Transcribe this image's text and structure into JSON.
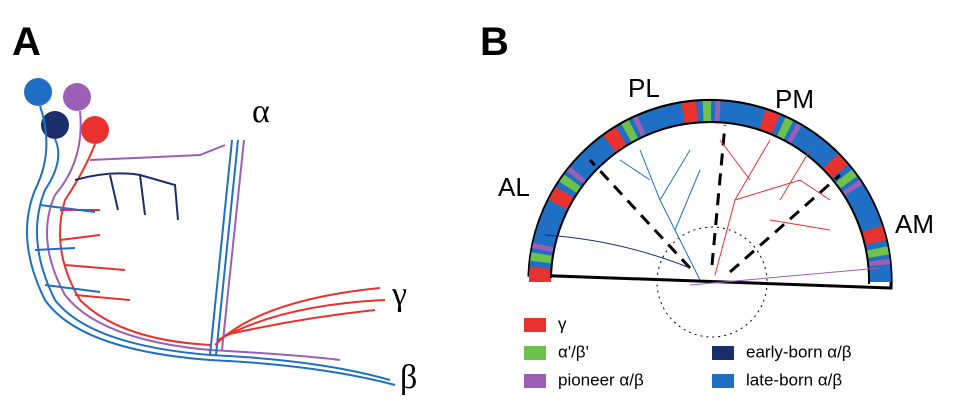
{
  "panel_a": {
    "label": "A",
    "axon_labels": [
      "α",
      "γ",
      "β"
    ]
  },
  "panel_b": {
    "label": "B",
    "lobes": [
      "PL",
      "PM",
      "AL",
      "AM"
    ],
    "legend": [
      {
        "label": "γ",
        "color": "#e8322f"
      },
      {
        "label": "α'/β'",
        "color": "#6cc24a"
      },
      {
        "label": "pioneer α/β",
        "color": "#9b5fb5"
      },
      {
        "label": "early-born α/β",
        "color": "#1b2f6b"
      },
      {
        "label": "late-born α/β",
        "color": "#1f6fc4"
      }
    ]
  }
}
